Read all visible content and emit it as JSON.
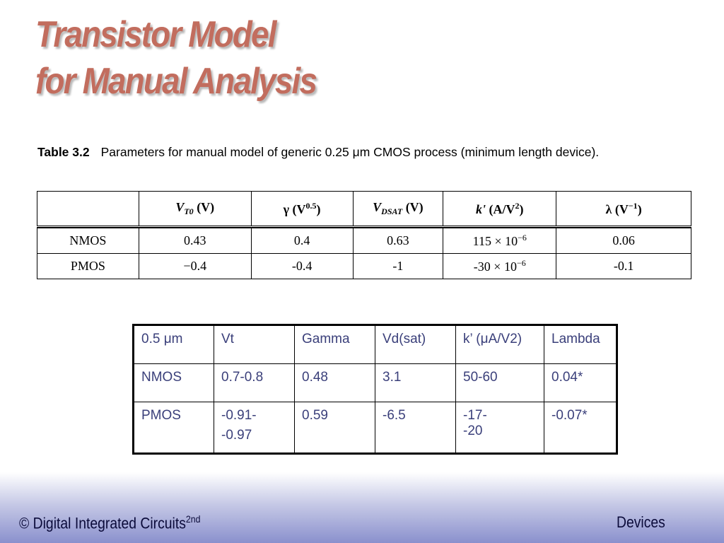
{
  "slide": {
    "title_line1": "Transistor Model",
    "title_line2": "for Manual Analysis"
  },
  "caption": {
    "label": "Table 3.2",
    "text": "Parameters for manual model of generic 0.25 μm CMOS process (minimum length device)."
  },
  "table_3_2": {
    "headers": {
      "vt0": {
        "symbol": "V",
        "subscript": "T0",
        "unit": " (V)"
      },
      "gamma": {
        "symbol": "γ (V",
        "superscript": "0.5",
        "tail": ")"
      },
      "vdsat": {
        "symbol": "V",
        "subscript": "DSAT",
        "unit": " (V)"
      },
      "kprime": {
        "symbol": "k'",
        "unit": " (A/V",
        "superscript": "2",
        "tail": ")"
      },
      "lambda": {
        "symbol": "λ (V",
        "superscript": "−1",
        "tail": ")"
      }
    },
    "rows": [
      {
        "device": "NMOS",
        "vt0": "0.43",
        "gamma": "0.4",
        "vdsat": "0.63",
        "k_mant": "115 × 10",
        "k_exp": "−6",
        "lambda": "0.06"
      },
      {
        "device": "PMOS",
        "vt0": "−0.4",
        "gamma": "-0.4",
        "vdsat": "-1",
        "k_mant": "-30 × 10",
        "k_exp": "−6",
        "lambda": "-0.1"
      }
    ]
  },
  "table_05um": {
    "headers": [
      "0.5 μm",
      "Vt",
      "Gamma",
      "Vd(sat)",
      "k’ (μA/V2)",
      "Lambda"
    ],
    "nmos": [
      "NMOS",
      "0.7-0.8",
      "0.48",
      "3.1",
      "50-60",
      "0.04*"
    ],
    "pmos": {
      "device": "PMOS",
      "vt_line1": "-0.91-",
      "vt_line2": "-0.97",
      "gamma": "0.59",
      "vdsat": "-6.5",
      "k_line1": "-17-",
      "k_line2": "-20",
      "lambda": "-0.07*"
    }
  },
  "footer": {
    "left": "© Digital Integrated Circuits",
    "left_sup": "2nd",
    "right": "Devices"
  },
  "colors": {
    "title": "#c26d5e",
    "table_text": "#3a3f7a",
    "footer_gradient_end": "#8a90cd"
  }
}
